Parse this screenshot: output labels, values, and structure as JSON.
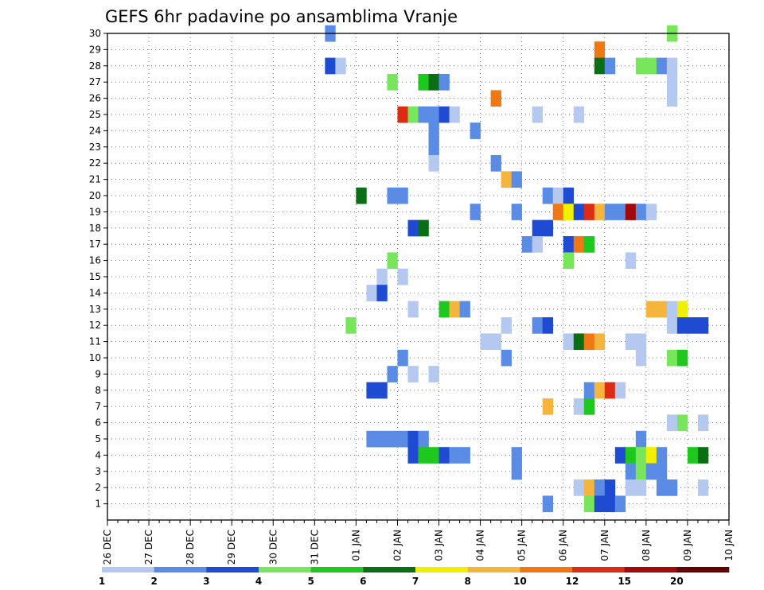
{
  "chart_data": {
    "type": "heatmap",
    "title": "GEFS 6hr padavine po ansamblima Vranje",
    "xlabel": "",
    "ylabel": "",
    "x_start": "26 DEC",
    "x_ticks": [
      "26 DEC",
      "27 DEC",
      "28 DEC",
      "29 DEC",
      "30 DEC",
      "31 DEC",
      "01 JAN",
      "02 JAN",
      "03 JAN",
      "04 JAN",
      "05 JAN",
      "06 JAN",
      "07 JAN",
      "08 JAN",
      "09 JAN",
      "10 JAN"
    ],
    "x_step": "6 hr",
    "y_ticks": [
      1,
      2,
      3,
      4,
      5,
      6,
      7,
      8,
      9,
      10,
      11,
      12,
      13,
      14,
      15,
      16,
      17,
      18,
      19,
      20,
      21,
      22,
      23,
      24,
      25,
      26,
      27,
      28,
      29,
      30
    ],
    "ylim": [
      0,
      30
    ],
    "grid": true,
    "levels": [
      1,
      2,
      3,
      4,
      5,
      6,
      7,
      8,
      10,
      12,
      15,
      20
    ],
    "level_colors": [
      "#b4c8f0",
      "#5a8ce6",
      "#1e4bd2",
      "#78e65a",
      "#1ec81e",
      "#0a6e14",
      "#f0f000",
      "#f5b43c",
      "#f07814",
      "#dc2d14",
      "#a00a0a",
      "#640000"
    ],
    "cells": [
      {
        "member": 30,
        "t": 21,
        "level": 2
      },
      {
        "member": 30,
        "t": 54,
        "level": 4
      },
      {
        "member": 29,
        "t": 47,
        "level": 9
      },
      {
        "member": 28,
        "t": 21,
        "level": 3
      },
      {
        "member": 28,
        "t": 22,
        "level": 1
      },
      {
        "member": 28,
        "t": 47,
        "level": 6
      },
      {
        "member": 28,
        "t": 48,
        "level": 2
      },
      {
        "member": 28,
        "t": 51,
        "level": 4
      },
      {
        "member": 28,
        "t": 52,
        "level": 4
      },
      {
        "member": 28,
        "t": 53,
        "level": 2
      },
      {
        "member": 28,
        "t": 54,
        "level": 1
      },
      {
        "member": 27,
        "t": 27,
        "level": 4
      },
      {
        "member": 27,
        "t": 30,
        "level": 5
      },
      {
        "member": 27,
        "t": 31,
        "level": 6
      },
      {
        "member": 27,
        "t": 32,
        "level": 2
      },
      {
        "member": 27,
        "t": 54,
        "level": 1
      },
      {
        "member": 26,
        "t": 37,
        "level": 9
      },
      {
        "member": 26,
        "t": 54,
        "level": 1
      },
      {
        "member": 25,
        "t": 28,
        "level": 10
      },
      {
        "member": 25,
        "t": 29,
        "level": 4
      },
      {
        "member": 25,
        "t": 30,
        "level": 2
      },
      {
        "member": 25,
        "t": 31,
        "level": 2
      },
      {
        "member": 25,
        "t": 32,
        "level": 3
      },
      {
        "member": 25,
        "t": 33,
        "level": 1
      },
      {
        "member": 25,
        "t": 41,
        "level": 1
      },
      {
        "member": 25,
        "t": 45,
        "level": 1
      },
      {
        "member": 24,
        "t": 31,
        "level": 2
      },
      {
        "member": 24,
        "t": 35,
        "level": 2
      },
      {
        "member": 23,
        "t": 31,
        "level": 2
      },
      {
        "member": 22,
        "t": 31,
        "level": 1
      },
      {
        "member": 22,
        "t": 37,
        "level": 2
      },
      {
        "member": 21,
        "t": 38,
        "level": 8
      },
      {
        "member": 21,
        "t": 39,
        "level": 2
      },
      {
        "member": 20,
        "t": 24,
        "level": 6
      },
      {
        "member": 20,
        "t": 27,
        "level": 2
      },
      {
        "member": 20,
        "t": 28,
        "level": 2
      },
      {
        "member": 20,
        "t": 42,
        "level": 2
      },
      {
        "member": 20,
        "t": 43,
        "level": 1
      },
      {
        "member": 20,
        "t": 44,
        "level": 3
      },
      {
        "member": 19,
        "t": 35,
        "level": 2
      },
      {
        "member": 19,
        "t": 39,
        "level": 2
      },
      {
        "member": 19,
        "t": 43,
        "level": 9
      },
      {
        "member": 19,
        "t": 44,
        "level": 7
      },
      {
        "member": 19,
        "t": 45,
        "level": 3
      },
      {
        "member": 19,
        "t": 46,
        "level": 10
      },
      {
        "member": 19,
        "t": 47,
        "level": 8
      },
      {
        "member": 19,
        "t": 48,
        "level": 2
      },
      {
        "member": 19,
        "t": 49,
        "level": 2
      },
      {
        "member": 19,
        "t": 50,
        "level": 11
      },
      {
        "member": 19,
        "t": 51,
        "level": 2
      },
      {
        "member": 19,
        "t": 52,
        "level": 1
      },
      {
        "member": 18,
        "t": 29,
        "level": 3
      },
      {
        "member": 18,
        "t": 30,
        "level": 6
      },
      {
        "member": 18,
        "t": 41,
        "level": 3
      },
      {
        "member": 18,
        "t": 42,
        "level": 3
      },
      {
        "member": 17,
        "t": 40,
        "level": 2
      },
      {
        "member": 17,
        "t": 41,
        "level": 1
      },
      {
        "member": 17,
        "t": 44,
        "level": 3
      },
      {
        "member": 17,
        "t": 45,
        "level": 9
      },
      {
        "member": 17,
        "t": 46,
        "level": 5
      },
      {
        "member": 16,
        "t": 27,
        "level": 4
      },
      {
        "member": 16,
        "t": 44,
        "level": 4
      },
      {
        "member": 16,
        "t": 50,
        "level": 1
      },
      {
        "member": 15,
        "t": 26,
        "level": 1
      },
      {
        "member": 15,
        "t": 28,
        "level": 1
      },
      {
        "member": 14,
        "t": 25,
        "level": 1
      },
      {
        "member": 14,
        "t": 26,
        "level": 3
      },
      {
        "member": 13,
        "t": 29,
        "level": 1
      },
      {
        "member": 13,
        "t": 32,
        "level": 5
      },
      {
        "member": 13,
        "t": 33,
        "level": 8
      },
      {
        "member": 13,
        "t": 34,
        "level": 2
      },
      {
        "member": 13,
        "t": 52,
        "level": 8
      },
      {
        "member": 13,
        "t": 53,
        "level": 8
      },
      {
        "member": 13,
        "t": 54,
        "level": 1
      },
      {
        "member": 13,
        "t": 55,
        "level": 7
      },
      {
        "member": 12,
        "t": 23,
        "level": 4
      },
      {
        "member": 12,
        "t": 38,
        "level": 1
      },
      {
        "member": 12,
        "t": 41,
        "level": 2
      },
      {
        "member": 12,
        "t": 42,
        "level": 3
      },
      {
        "member": 12,
        "t": 54,
        "level": 1
      },
      {
        "member": 12,
        "t": 55,
        "level": 3
      },
      {
        "member": 12,
        "t": 56,
        "level": 3
      },
      {
        "member": 12,
        "t": 57,
        "level": 3
      },
      {
        "member": 11,
        "t": 36,
        "level": 1
      },
      {
        "member": 11,
        "t": 37,
        "level": 1
      },
      {
        "member": 11,
        "t": 44,
        "level": 1
      },
      {
        "member": 11,
        "t": 45,
        "level": 6
      },
      {
        "member": 11,
        "t": 46,
        "level": 9
      },
      {
        "member": 11,
        "t": 47,
        "level": 8
      },
      {
        "member": 11,
        "t": 50,
        "level": 1
      },
      {
        "member": 11,
        "t": 51,
        "level": 1
      },
      {
        "member": 10,
        "t": 28,
        "level": 2
      },
      {
        "member": 10,
        "t": 38,
        "level": 2
      },
      {
        "member": 10,
        "t": 51,
        "level": 1
      },
      {
        "member": 10,
        "t": 54,
        "level": 4
      },
      {
        "member": 10,
        "t": 55,
        "level": 5
      },
      {
        "member": 9,
        "t": 27,
        "level": 2
      },
      {
        "member": 9,
        "t": 29,
        "level": 1
      },
      {
        "member": 9,
        "t": 31,
        "level": 1
      },
      {
        "member": 8,
        "t": 25,
        "level": 3
      },
      {
        "member": 8,
        "t": 26,
        "level": 3
      },
      {
        "member": 8,
        "t": 46,
        "level": 2
      },
      {
        "member": 8,
        "t": 47,
        "level": 8
      },
      {
        "member": 8,
        "t": 48,
        "level": 10
      },
      {
        "member": 8,
        "t": 49,
        "level": 1
      },
      {
        "member": 7,
        "t": 42,
        "level": 8
      },
      {
        "member": 7,
        "t": 45,
        "level": 1
      },
      {
        "member": 7,
        "t": 46,
        "level": 5
      },
      {
        "member": 6,
        "t": 54,
        "level": 1
      },
      {
        "member": 6,
        "t": 55,
        "level": 4
      },
      {
        "member": 6,
        "t": 57,
        "level": 1
      },
      {
        "member": 5,
        "t": 25,
        "level": 2
      },
      {
        "member": 5,
        "t": 26,
        "level": 2
      },
      {
        "member": 5,
        "t": 27,
        "level": 2
      },
      {
        "member": 5,
        "t": 28,
        "level": 2
      },
      {
        "member": 5,
        "t": 29,
        "level": 3
      },
      {
        "member": 5,
        "t": 30,
        "level": 2
      },
      {
        "member": 5,
        "t": 51,
        "level": 2
      },
      {
        "member": 4,
        "t": 29,
        "level": 3
      },
      {
        "member": 4,
        "t": 30,
        "level": 5
      },
      {
        "member": 4,
        "t": 31,
        "level": 5
      },
      {
        "member": 4,
        "t": 32,
        "level": 3
      },
      {
        "member": 4,
        "t": 33,
        "level": 2
      },
      {
        "member": 4,
        "t": 34,
        "level": 2
      },
      {
        "member": 4,
        "t": 39,
        "level": 2
      },
      {
        "member": 4,
        "t": 49,
        "level": 3
      },
      {
        "member": 4,
        "t": 50,
        "level": 5
      },
      {
        "member": 4,
        "t": 51,
        "level": 4
      },
      {
        "member": 4,
        "t": 52,
        "level": 7
      },
      {
        "member": 4,
        "t": 53,
        "level": 2
      },
      {
        "member": 4,
        "t": 56,
        "level": 5
      },
      {
        "member": 4,
        "t": 57,
        "level": 6
      },
      {
        "member": 3,
        "t": 39,
        "level": 2
      },
      {
        "member": 3,
        "t": 50,
        "level": 2
      },
      {
        "member": 3,
        "t": 51,
        "level": 4
      },
      {
        "member": 3,
        "t": 52,
        "level": 2
      },
      {
        "member": 3,
        "t": 53,
        "level": 2
      },
      {
        "member": 2,
        "t": 45,
        "level": 1
      },
      {
        "member": 2,
        "t": 46,
        "level": 8
      },
      {
        "member": 2,
        "t": 47,
        "level": 2
      },
      {
        "member": 2,
        "t": 48,
        "level": 3
      },
      {
        "member": 2,
        "t": 50,
        "level": 1
      },
      {
        "member": 2,
        "t": 51,
        "level": 1
      },
      {
        "member": 2,
        "t": 53,
        "level": 2
      },
      {
        "member": 2,
        "t": 54,
        "level": 2
      },
      {
        "member": 2,
        "t": 57,
        "level": 1
      },
      {
        "member": 1,
        "t": 42,
        "level": 2
      },
      {
        "member": 1,
        "t": 46,
        "level": 4
      },
      {
        "member": 1,
        "t": 47,
        "level": 3
      },
      {
        "member": 1,
        "t": 48,
        "level": 3
      },
      {
        "member": 1,
        "t": 49,
        "level": 2
      }
    ]
  }
}
